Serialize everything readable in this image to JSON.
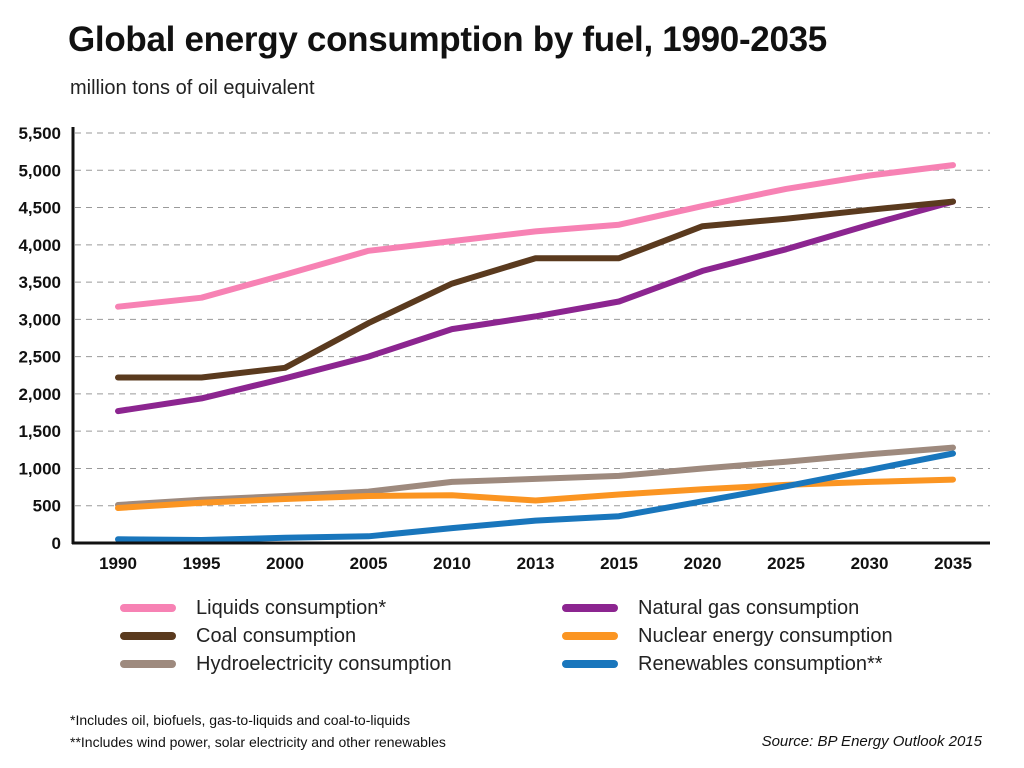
{
  "title": "Global energy consumption by fuel, 1990-2035",
  "subtitle": "million tons of oil equivalent",
  "footnotes": [
    "*Includes oil, biofuels, gas-to-liquids and coal-to-liquids",
    "**Includes wind power, solar electricity and other renewables"
  ],
  "source": "Source: BP Energy Outlook 2015",
  "chart_data": {
    "type": "line",
    "categories": [
      "1990",
      "1995",
      "2000",
      "2005",
      "2010",
      "2013",
      "2015",
      "2020",
      "2025",
      "2030",
      "2035"
    ],
    "ylim": [
      0,
      5500
    ],
    "yticks": [
      0,
      500,
      1000,
      1500,
      2000,
      2500,
      3000,
      3500,
      4000,
      4500,
      5000,
      5500
    ],
    "ytick_labels": [
      "0",
      "500",
      "1,000",
      "1,500",
      "2,000",
      "2,500",
      "3,000",
      "3,500",
      "4,000",
      "4,500",
      "5,000",
      "5,500"
    ],
    "grid": "horizontal dashed",
    "legend_position": "bottom",
    "series": [
      {
        "name": "Liquids consumption*",
        "color": "#f782b4",
        "values": [
          3170,
          3290,
          3600,
          3920,
          4050,
          4180,
          4270,
          4520,
          4750,
          4930,
          5070
        ]
      },
      {
        "name": "Coal consumption",
        "color": "#5a3a1e",
        "values": [
          2220,
          2220,
          2350,
          2950,
          3480,
          3820,
          3820,
          4250,
          4350,
          4470,
          4580
        ]
      },
      {
        "name": "Hydroelectricity consumption",
        "color": "#9e8a7e",
        "values": [
          510,
          580,
          630,
          690,
          820,
          860,
          900,
          1000,
          1090,
          1190,
          1280
        ]
      },
      {
        "name": "Natural gas consumption",
        "color": "#8c2590",
        "values": [
          1770,
          1940,
          2210,
          2500,
          2870,
          3040,
          3240,
          3650,
          3940,
          4270,
          4580
        ]
      },
      {
        "name": "Nuclear energy consumption",
        "color": "#fb9522",
        "values": [
          470,
          540,
          590,
          630,
          640,
          570,
          650,
          720,
          780,
          820,
          850
        ]
      },
      {
        "name": "Renewables consumption**",
        "color": "#1976bc",
        "values": [
          50,
          40,
          70,
          90,
          200,
          300,
          360,
          560,
          760,
          980,
          1200
        ]
      }
    ]
  }
}
